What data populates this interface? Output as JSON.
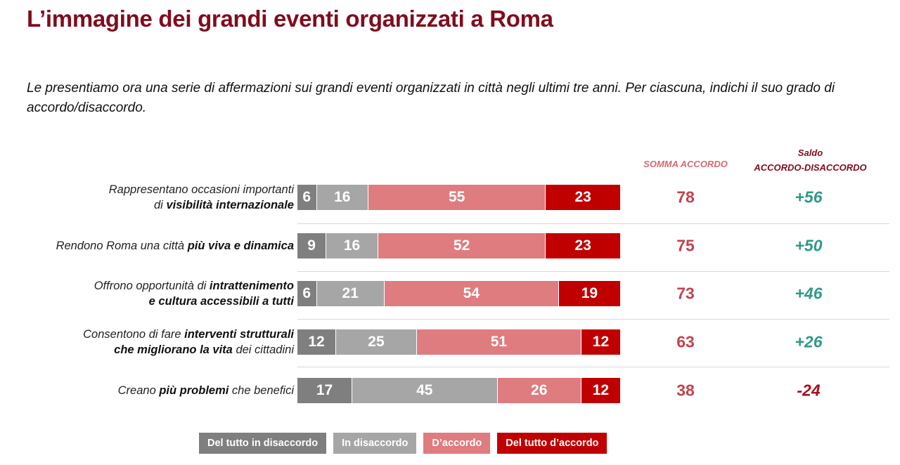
{
  "title": "L’immagine dei grandi eventi organizzati a Roma",
  "subtitle": "Le presentiamo ora una serie di affermazioni sui grandi eventi organizzati in città negli ultimi tre anni. Per ciascuna, indichi il suo grado di accordo/disaccordo.",
  "headers": {
    "somma": "SOMMA ACCORDO",
    "saldo_line1": "Saldo",
    "saldo_line2": "ACCORDO-DISACCORDO"
  },
  "colors": {
    "del_tutto_disaccordo": "#7f7f7f",
    "in_disaccordo": "#a6a6a6",
    "accordo": "#de7c80",
    "del_tutto_accordo": "#c00000",
    "title": "#7f0d1e",
    "saldo_positive": "#2e9a87",
    "saldo_negative": "#a50f1e",
    "somma": "#c2434d"
  },
  "chart_data": {
    "type": "bar",
    "orientation": "horizontal",
    "stacked": true,
    "title": "L’immagine dei grandi eventi organizzati a Roma",
    "categories": [
      "Rappresentano occasioni importanti di visibilità internazionale",
      "Rendono Roma una città più viva e dinamica",
      "Offrono opportunità di intrattenimento e cultura accessibili a tutti",
      "Consentono di fare interventi strutturali che migliorano la vita dei cittadini",
      "Creano più problemi che benefici"
    ],
    "series": [
      {
        "name": "Del tutto in disaccordo",
        "values": [
          6,
          9,
          6,
          12,
          17
        ]
      },
      {
        "name": "In disaccordo",
        "values": [
          16,
          16,
          21,
          25,
          45
        ]
      },
      {
        "name": "D’accordo",
        "values": [
          55,
          52,
          54,
          51,
          26
        ]
      },
      {
        "name": "Del tutto d’accordo",
        "values": [
          23,
          23,
          19,
          12,
          12
        ]
      }
    ],
    "somma_accordo": [
      78,
      75,
      73,
      63,
      38
    ],
    "saldo": [
      "+56",
      "+50",
      "+46",
      "+26",
      "-24"
    ],
    "xlim": [
      0,
      100
    ],
    "legend_position": "bottom",
    "grid": false
  },
  "rows": [
    {
      "label_parts": [
        {
          "t": "Rappresentano occasioni importanti",
          "b": false
        },
        {
          "t": "\n",
          "b": false
        },
        {
          "t": "di ",
          "b": false
        },
        {
          "t": "visibilità internazionale",
          "b": true
        }
      ]
    },
    {
      "label_parts": [
        {
          "t": "Rendono Roma una città ",
          "b": false
        },
        {
          "t": "più viva e dinamica",
          "b": true
        }
      ]
    },
    {
      "label_parts": [
        {
          "t": "Offrono opportunità di ",
          "b": false
        },
        {
          "t": "intrattenimento",
          "b": true
        },
        {
          "t": "\n",
          "b": false
        },
        {
          "t": "e cultura accessibili a tutti",
          "b": true
        }
      ]
    },
    {
      "label_parts": [
        {
          "t": "Consentono di fare ",
          "b": false
        },
        {
          "t": "interventi strutturali",
          "b": true
        },
        {
          "t": "\n",
          "b": false
        },
        {
          "t": "che migliorano la vita",
          "b": true
        },
        {
          "t": " dei cittadini",
          "b": false
        }
      ]
    },
    {
      "label_parts": [
        {
          "t": "Creano ",
          "b": false
        },
        {
          "t": "più problemi",
          "b": true
        },
        {
          "t": " che benefici",
          "b": false
        }
      ]
    }
  ],
  "legend": [
    {
      "label": "Del tutto in disaccordo",
      "key": "del_tutto_disaccordo"
    },
    {
      "label": "In disaccordo",
      "key": "in_disaccordo"
    },
    {
      "label": "D’accordo",
      "key": "accordo"
    },
    {
      "label": "Del tutto d’accordo",
      "key": "del_tutto_accordo"
    }
  ]
}
